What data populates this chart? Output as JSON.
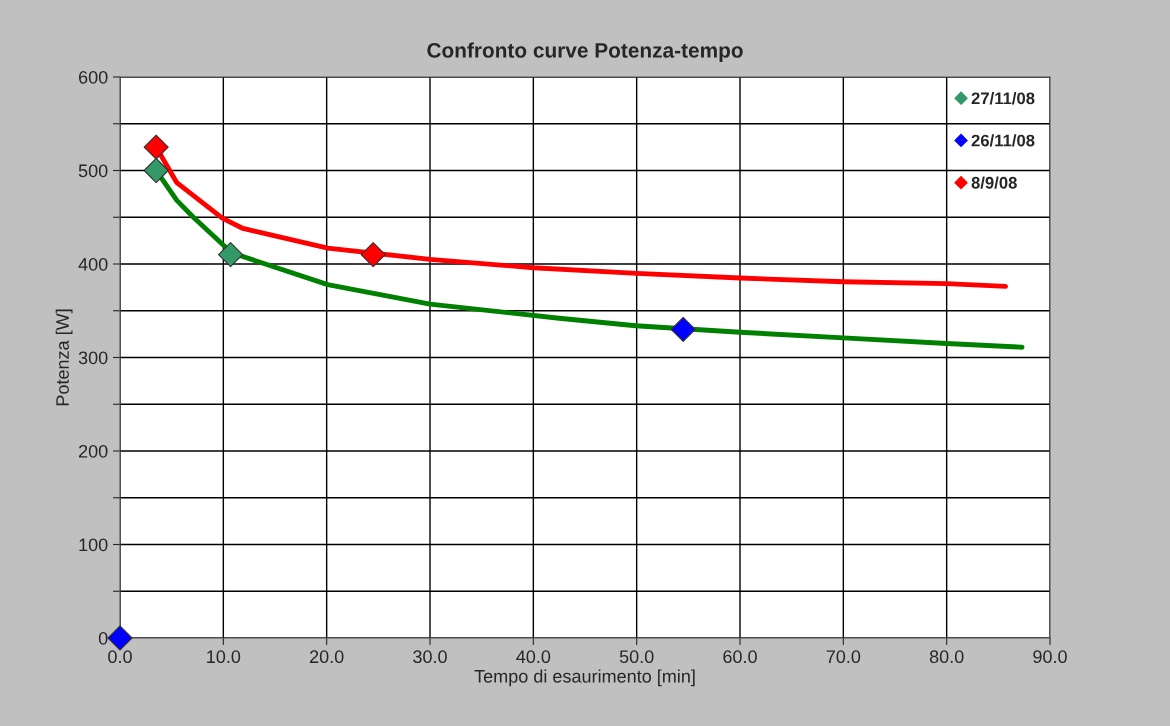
{
  "chart_data": {
    "type": "scatter",
    "title": "Confronto curve Potenza-tempo",
    "xlabel": "Tempo di esaurimento [min]",
    "ylabel": "Potenza [W]",
    "xlim": [
      0,
      90
    ],
    "xticks": [
      {
        "value": 0,
        "label": "0.0"
      },
      {
        "value": 10,
        "label": "10.0"
      },
      {
        "value": 20,
        "label": "20.0"
      },
      {
        "value": 30,
        "label": "30.0"
      },
      {
        "value": 40,
        "label": "40.0"
      },
      {
        "value": 50,
        "label": "50.0"
      },
      {
        "value": 60,
        "label": "60.0"
      },
      {
        "value": 70,
        "label": "70.0"
      },
      {
        "value": 80,
        "label": "80.0"
      },
      {
        "value": 90,
        "label": "90.0"
      }
    ],
    "ylim": [
      0,
      600
    ],
    "yticks": [
      0,
      {
        "value": 50,
        "label": null
      },
      100,
      {
        "value": 150,
        "label": null
      },
      200,
      {
        "value": 250,
        "label": null
      },
      300,
      {
        "value": 350,
        "label": null
      },
      400,
      {
        "value": 450,
        "label": null
      },
      500,
      {
        "value": 550,
        "label": null
      },
      600
    ],
    "grid": true,
    "legend": "top right",
    "marker": "diamond",
    "series": [
      {
        "type": "line",
        "color": "#008000",
        "marker": "none",
        "x": [
          3.5,
          5.5,
          7.1,
          10.8,
          20.1,
          30,
          42.5,
          49.9,
          60,
          70,
          80,
          87.3
        ],
        "values": [
          500,
          468,
          450,
          412,
          378,
          357,
          342,
          334,
          327,
          321,
          315,
          311
        ]
      },
      {
        "type": "line",
        "color": "#ff0000",
        "marker": "none",
        "x": [
          3.5,
          5.5,
          9.9,
          11.9,
          20.1,
          30,
          40,
          50,
          60,
          70,
          80,
          85.7
        ],
        "values": [
          525,
          487,
          449,
          438,
          417,
          405,
          396,
          390,
          385,
          381,
          379,
          376
        ]
      },
      {
        "name": "27/11/08",
        "color": "#339966",
        "x": [
          3.5,
          10.7
        ],
        "values": [
          500,
          410
        ]
      },
      {
        "name": "26/11/08",
        "color": "#0000ff",
        "x": [
          0,
          54.5
        ],
        "values": [
          0,
          330
        ]
      },
      {
        "name": "8/9/08",
        "color": "#ff0000",
        "x": [
          3.5,
          24.5
        ],
        "values": [
          525,
          410
        ]
      }
    ]
  }
}
